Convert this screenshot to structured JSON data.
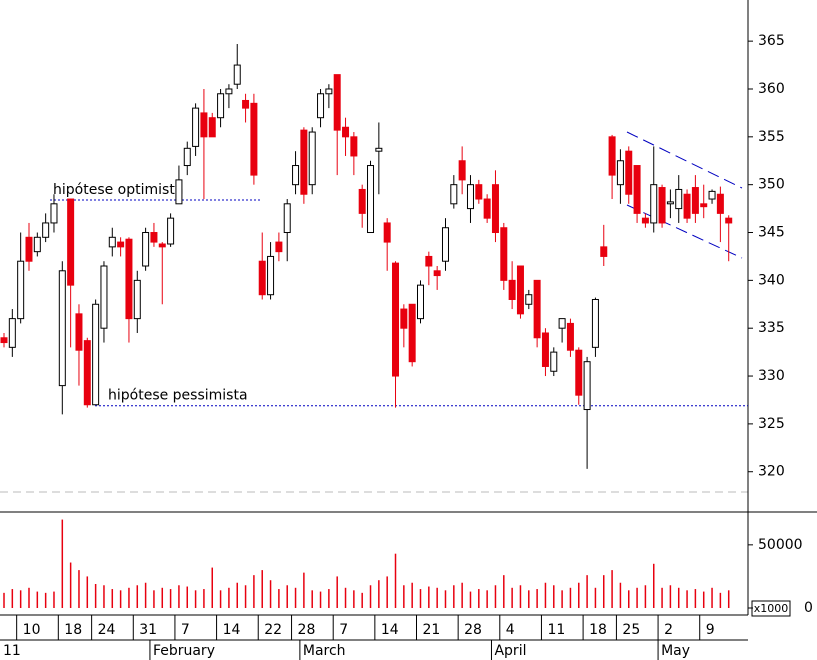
{
  "chart_data": {
    "type": "candlestick",
    "categories": [
      null,
      null,
      "10",
      null,
      null,
      null,
      null,
      "18",
      null,
      null,
      null,
      "24",
      null,
      null,
      null,
      null,
      "31",
      null,
      null,
      null,
      null,
      "7",
      null,
      null,
      null,
      null,
      "14",
      null,
      null,
      null,
      null,
      "22",
      null,
      null,
      null,
      "28",
      null,
      null,
      null,
      null,
      "7",
      null,
      null,
      null,
      null,
      "14",
      null,
      null,
      null,
      null,
      "21",
      null,
      null,
      null,
      null,
      "28",
      null,
      null,
      null,
      null,
      "4",
      null,
      null,
      null,
      null,
      "11",
      null,
      null,
      null,
      null,
      "18",
      null,
      null,
      null,
      "25",
      null,
      null,
      null,
      null,
      "2",
      null,
      null,
      null,
      null,
      "9",
      null,
      null,
      null
    ],
    "months": [
      "11",
      "February",
      "March",
      "April",
      "May"
    ],
    "open": [
      334,
      333,
      336,
      344.5,
      343,
      344.5,
      346,
      329,
      348.5,
      336.5,
      333.7,
      327,
      335,
      343.5,
      344,
      344.3,
      336,
      341.5,
      345,
      343.8,
      343.8,
      348,
      352,
      354,
      357.5,
      357,
      357,
      359.5,
      360.5,
      358.8,
      358.5,
      342,
      338.5,
      344,
      345,
      350,
      355.7,
      350,
      357,
      359.5,
      361.5,
      356,
      355,
      349.5,
      345,
      353.5,
      346,
      341.8,
      337,
      337.5,
      336,
      342.5,
      341,
      342,
      348,
      352.5,
      347.5,
      350,
      348.5,
      350,
      345.5,
      340,
      341.5,
      337.5,
      340,
      334.5,
      330.5,
      335,
      335.5,
      332.7,
      326.5,
      333,
      343.5,
      355,
      350,
      353.5,
      352,
      346.5,
      346,
      349.7,
      348,
      347.5,
      349,
      349.7,
      348,
      348.5,
      349,
      346.5
    ],
    "high": [
      334.5,
      337,
      345,
      346,
      345,
      347,
      349,
      342,
      348.5,
      337.5,
      334,
      338,
      342,
      345.5,
      344.5,
      344.5,
      341,
      345.5,
      346,
      344,
      347,
      352,
      354.5,
      358.5,
      360,
      357.5,
      360,
      360.5,
      364.7,
      359.5,
      359.5,
      345,
      344,
      345,
      348.5,
      353.5,
      356,
      356,
      360,
      360.5,
      361.5,
      357,
      355.5,
      350,
      352.5,
      356.5,
      346.5,
      342,
      337.5,
      337.5,
      340,
      343,
      341.5,
      346.5,
      351,
      354,
      351,
      350.5,
      349,
      351.5,
      346,
      342,
      341.5,
      339,
      340,
      335,
      333,
      336,
      336,
      333,
      332,
      338.2,
      345.8,
      355.2,
      353.7,
      354,
      352,
      347,
      354,
      350,
      349.5,
      351,
      349.5,
      351,
      350,
      349.5,
      349.8,
      346.8
    ],
    "low": [
      333,
      332,
      335.5,
      341,
      342.5,
      344,
      345,
      326,
      333,
      329,
      326.7,
      327,
      333.5,
      342.5,
      342.5,
      333.5,
      334.5,
      341,
      343.5,
      337.5,
      343.5,
      348,
      351,
      353,
      348.5,
      355,
      356,
      358,
      360,
      356.5,
      350,
      338,
      338,
      342,
      342,
      349,
      348,
      349,
      356,
      358,
      351,
      353,
      351,
      345.5,
      345,
      349,
      341,
      326.7,
      333,
      331,
      335.5,
      339.5,
      339,
      341,
      347.5,
      349,
      346,
      348,
      346,
      344,
      339,
      337,
      336,
      337,
      333,
      330,
      330,
      333.5,
      332,
      327,
      320.3,
      332,
      341.5,
      348.5,
      348,
      348,
      346,
      345.5,
      345,
      345.5,
      346.5,
      346,
      346,
      346,
      346.5,
      348,
      344,
      342
    ],
    "close": [
      333.5,
      336,
      342,
      342,
      344.5,
      346,
      348,
      341,
      339.5,
      332.7,
      327,
      337.5,
      341.5,
      344.5,
      343.5,
      336,
      340,
      345,
      344,
      343.5,
      346.5,
      350.5,
      353.8,
      358,
      355,
      355,
      359.5,
      360,
      362.5,
      358,
      351,
      338.5,
      342.5,
      343,
      348,
      352,
      349,
      355.5,
      359.5,
      360,
      355.7,
      355,
      353,
      347,
      352,
      353.8,
      344,
      330,
      335,
      331.5,
      339.5,
      341.5,
      340.5,
      345.5,
      350,
      350.5,
      350,
      348.5,
      346.5,
      345,
      340,
      338,
      336.5,
      338.5,
      334,
      331,
      332.5,
      336,
      332.7,
      328,
      331.5,
      338,
      342.5,
      351,
      352.5,
      349,
      347,
      346,
      350,
      346,
      348.2,
      349.5,
      346.5,
      347,
      347.7,
      349.3,
      347,
      346
    ],
    "up_color": "#ffffff",
    "down_color": "#e8000f",
    "ylim": [
      316,
      369.3
    ],
    "yticks": [
      320,
      325,
      330,
      335,
      340,
      345,
      350,
      355,
      360,
      365
    ],
    "annotations": [
      {
        "text": "hipótese optimista",
        "value": 348.4
      },
      {
        "text": "hipótese pessimista",
        "value": 326.9
      }
    ],
    "volume": {
      "values": [
        12000,
        15000,
        14000,
        16000,
        13000,
        12000,
        13000,
        70000,
        36000,
        30000,
        25000,
        19000,
        18000,
        15000,
        14000,
        16000,
        18000,
        20000,
        14000,
        16000,
        15000,
        18000,
        17000,
        14000,
        15000,
        32000,
        14000,
        16000,
        20000,
        18000,
        26000,
        30000,
        22000,
        15000,
        18000,
        16000,
        28000,
        14000,
        13000,
        15000,
        25000,
        16000,
        14000,
        12000,
        18000,
        22000,
        25000,
        43000,
        18000,
        20000,
        15000,
        17000,
        16000,
        14000,
        18000,
        20000,
        13000,
        15000,
        14000,
        18000,
        26000,
        16000,
        18000,
        14000,
        15000,
        20000,
        18000,
        14000,
        16000,
        20000,
        26000,
        16000,
        26000,
        30000,
        20000,
        14000,
        16000,
        18000,
        35000,
        16000,
        18000,
        16000,
        14000,
        15000,
        13000,
        16000,
        12000,
        14000
      ],
      "color": "#e8000f",
      "ylim": [
        0,
        76000
      ],
      "yticks": [
        0,
        50000
      ],
      "unit_label": "x1000"
    }
  }
}
